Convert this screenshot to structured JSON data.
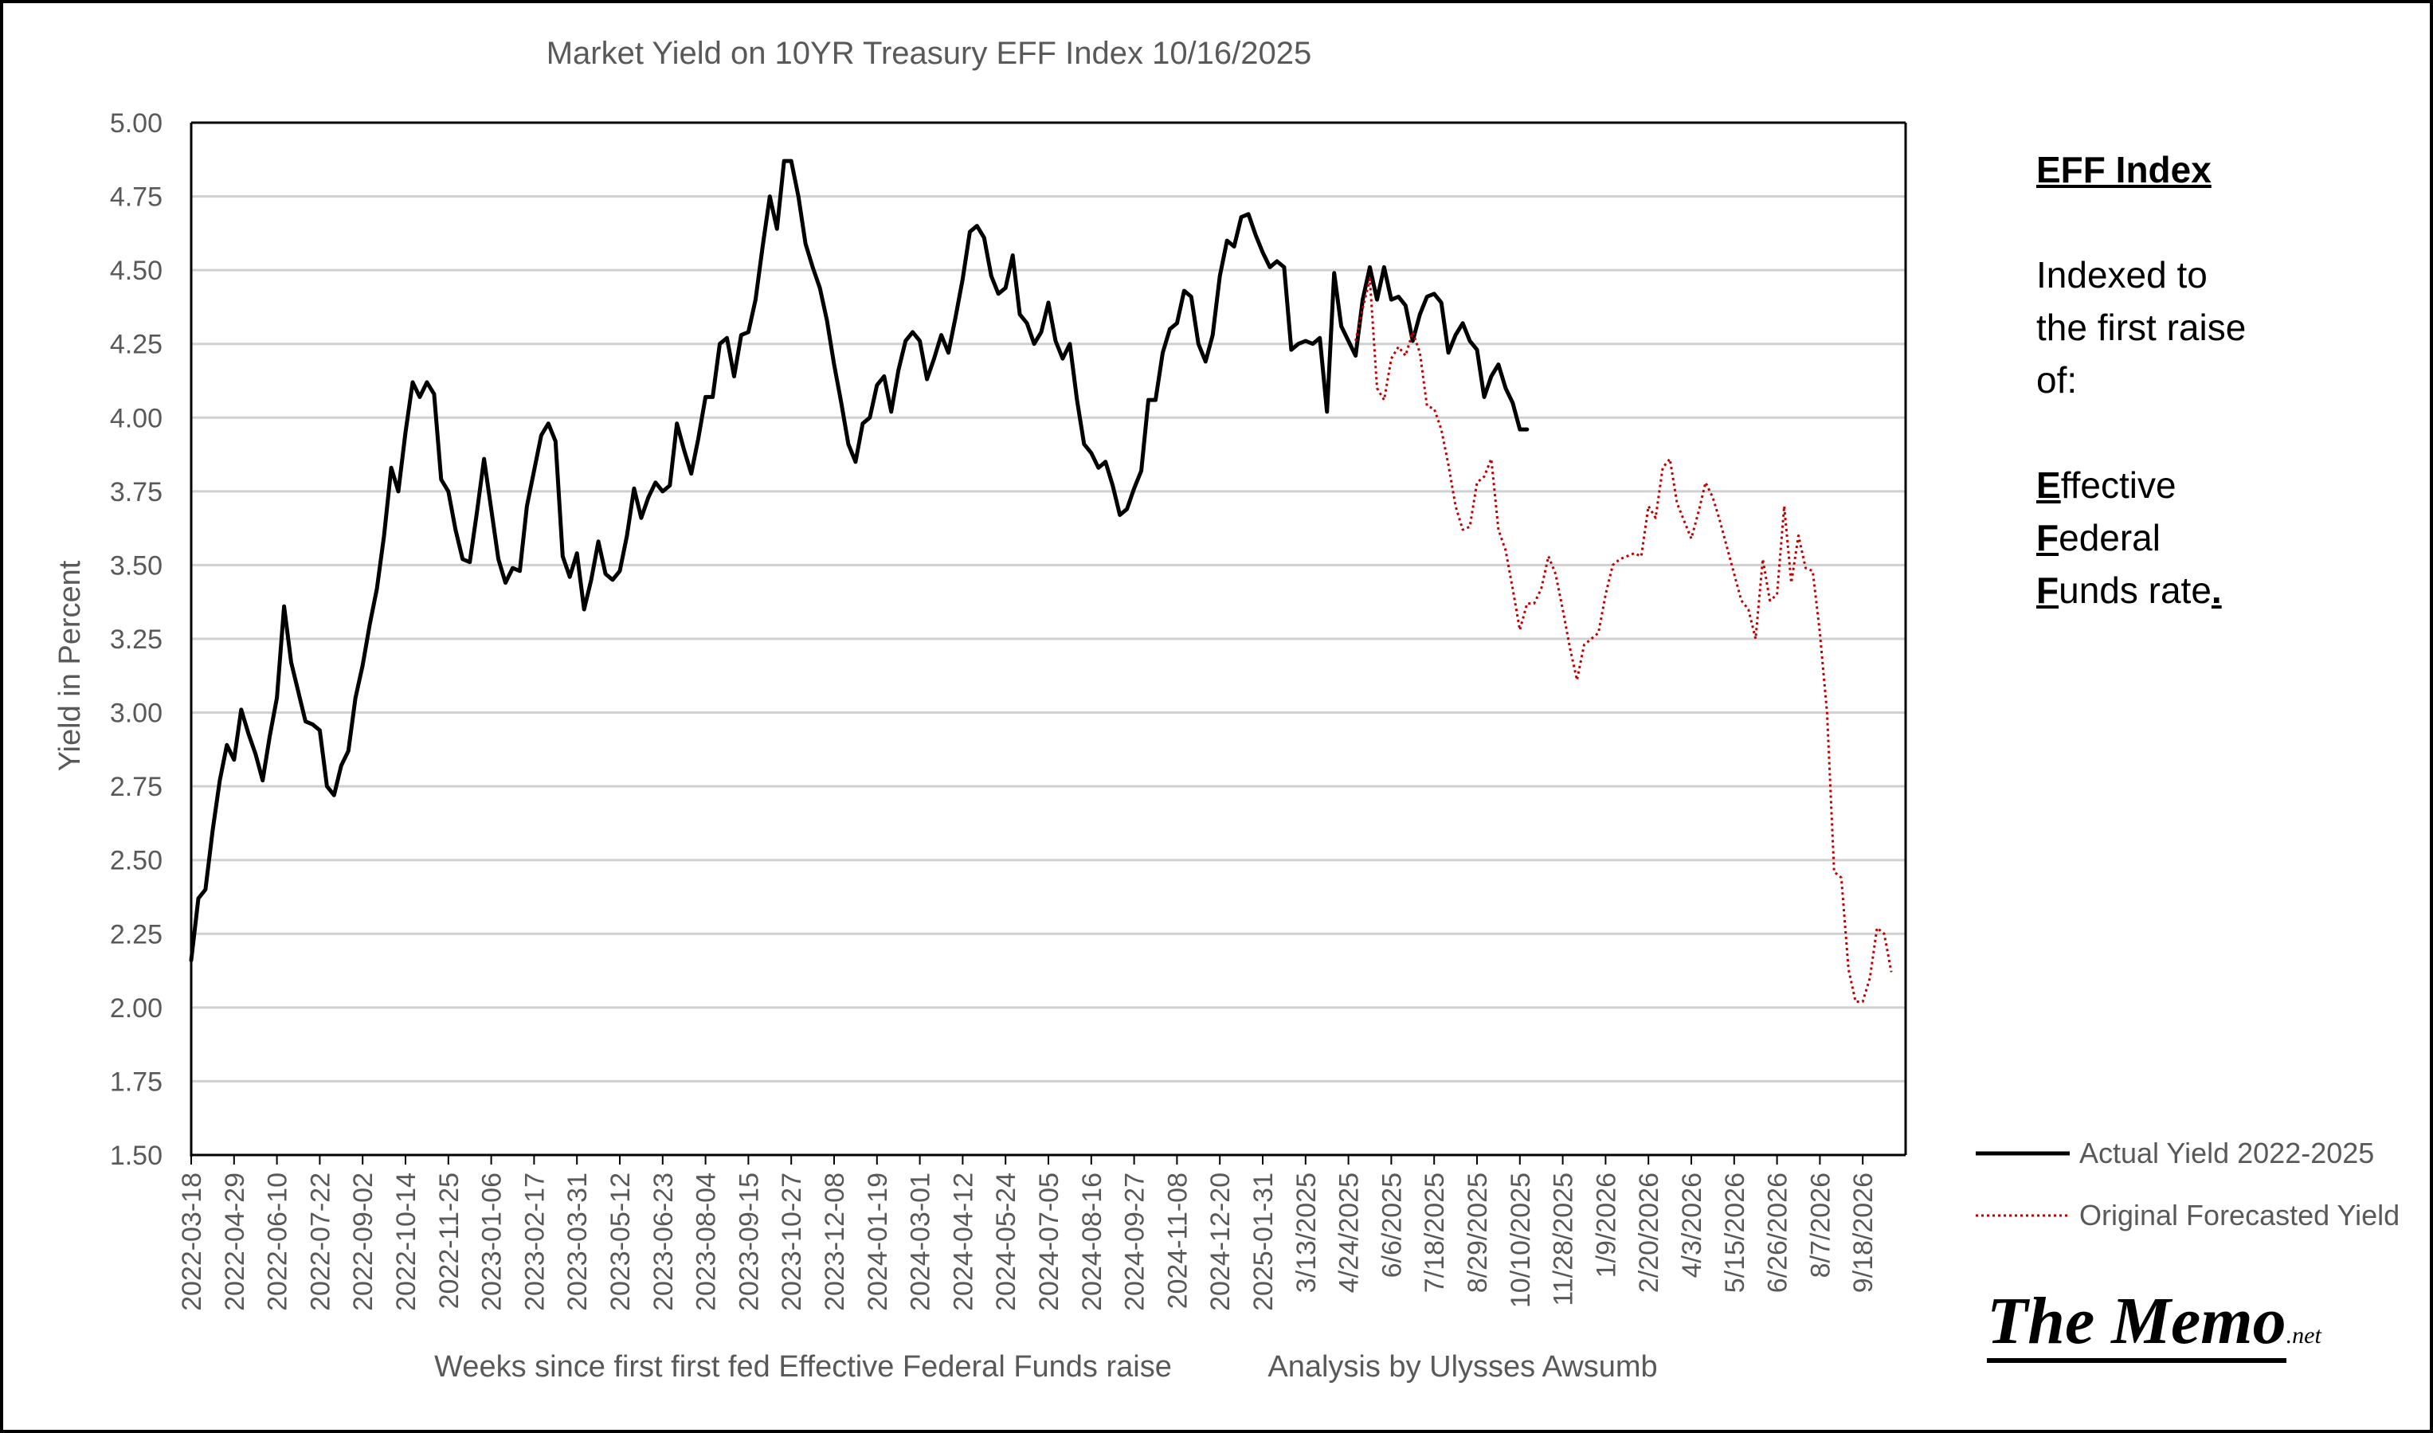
{
  "chart_data": {
    "type": "line",
    "title": "Market Yield on 10YR Treasury EFF Index 10/16/2025",
    "xlabel": "Weeks since first first fed Effective Federal Funds raise",
    "credit": "Analysis by Ulysses Awsumb",
    "ylabel": "Yield in Percent",
    "ylim": [
      1.5,
      5.0
    ],
    "y_ticks": [
      "5.00",
      "4.75",
      "4.50",
      "4.25",
      "4.00",
      "3.75",
      "3.50",
      "3.25",
      "3.00",
      "2.75",
      "2.50",
      "2.25",
      "2.00",
      "1.75",
      "1.50"
    ],
    "grid": "horizontal",
    "x_range": [
      0,
      240
    ],
    "x_ticks": [
      {
        "x": 0,
        "label": "2022-03-18"
      },
      {
        "x": 6,
        "label": "2022-04-29"
      },
      {
        "x": 12,
        "label": "2022-06-10"
      },
      {
        "x": 18,
        "label": "2022-07-22"
      },
      {
        "x": 24,
        "label": "2022-09-02"
      },
      {
        "x": 30,
        "label": "2022-10-14"
      },
      {
        "x": 36,
        "label": "2022-11-25"
      },
      {
        "x": 42,
        "label": "2023-01-06"
      },
      {
        "x": 48,
        "label": "2023-02-17"
      },
      {
        "x": 54,
        "label": "2023-03-31"
      },
      {
        "x": 60,
        "label": "2023-05-12"
      },
      {
        "x": 66,
        "label": "2023-06-23"
      },
      {
        "x": 72,
        "label": "2023-08-04"
      },
      {
        "x": 78,
        "label": "2023-09-15"
      },
      {
        "x": 84,
        "label": "2023-10-27"
      },
      {
        "x": 90,
        "label": "2023-12-08"
      },
      {
        "x": 96,
        "label": "2024-01-19"
      },
      {
        "x": 102,
        "label": "2024-03-01"
      },
      {
        "x": 108,
        "label": "2024-04-12"
      },
      {
        "x": 114,
        "label": "2024-05-24"
      },
      {
        "x": 120,
        "label": "2024-07-05"
      },
      {
        "x": 126,
        "label": "2024-08-16"
      },
      {
        "x": 132,
        "label": "2024-09-27"
      },
      {
        "x": 138,
        "label": "2024-11-08"
      },
      {
        "x": 144,
        "label": "2024-12-20"
      },
      {
        "x": 150,
        "label": "2025-01-31"
      },
      {
        "x": 156,
        "label": "3/13/2025"
      },
      {
        "x": 162,
        "label": "4/24/2025"
      },
      {
        "x": 168,
        "label": "6/6/2025"
      },
      {
        "x": 174,
        "label": "7/18/2025"
      },
      {
        "x": 180,
        "label": "8/29/2025"
      },
      {
        "x": 186,
        "label": "10/10/2025"
      },
      {
        "x": 192,
        "label": "11/28/2025"
      },
      {
        "x": 198,
        "label": "1/9/2026"
      },
      {
        "x": 204,
        "label": "2/20/2026"
      },
      {
        "x": 210,
        "label": "4/3/2026"
      },
      {
        "x": 216,
        "label": "5/15/2026"
      },
      {
        "x": 222,
        "label": "6/26/2026"
      },
      {
        "x": 228,
        "label": "8/7/2026"
      },
      {
        "x": 234,
        "label": "9/18/2026"
      }
    ],
    "series": [
      {
        "name": "Actual Yield 2022-2025",
        "color": "#000000",
        "style": "solid",
        "points": [
          [
            0,
            2.16
          ],
          [
            1,
            2.37
          ],
          [
            2,
            2.4
          ],
          [
            3,
            2.6
          ],
          [
            4,
            2.77
          ],
          [
            5,
            2.89
          ],
          [
            6,
            2.84
          ],
          [
            7,
            3.01
          ],
          [
            8,
            2.93
          ],
          [
            9,
            2.86
          ],
          [
            10,
            2.77
          ],
          [
            11,
            2.92
          ],
          [
            12,
            3.05
          ],
          [
            13,
            3.36
          ],
          [
            14,
            3.17
          ],
          [
            15,
            3.07
          ],
          [
            16,
            2.97
          ],
          [
            17,
            2.96
          ],
          [
            18,
            2.94
          ],
          [
            19,
            2.75
          ],
          [
            20,
            2.72
          ],
          [
            21,
            2.82
          ],
          [
            22,
            2.87
          ],
          [
            23,
            3.05
          ],
          [
            24,
            3.16
          ],
          [
            25,
            3.3
          ],
          [
            26,
            3.42
          ],
          [
            27,
            3.6
          ],
          [
            28,
            3.83
          ],
          [
            29,
            3.75
          ],
          [
            30,
            3.95
          ],
          [
            31,
            4.12
          ],
          [
            32,
            4.07
          ],
          [
            33,
            4.12
          ],
          [
            34,
            4.08
          ],
          [
            35,
            3.79
          ],
          [
            36,
            3.75
          ],
          [
            37,
            3.62
          ],
          [
            38,
            3.52
          ],
          [
            39,
            3.51
          ],
          [
            40,
            3.68
          ],
          [
            41,
            3.86
          ],
          [
            42,
            3.69
          ],
          [
            43,
            3.52
          ],
          [
            44,
            3.44
          ],
          [
            45,
            3.49
          ],
          [
            46,
            3.48
          ],
          [
            47,
            3.7
          ],
          [
            48,
            3.82
          ],
          [
            49,
            3.94
          ],
          [
            50,
            3.98
          ],
          [
            51,
            3.92
          ],
          [
            52,
            3.53
          ],
          [
            53,
            3.46
          ],
          [
            54,
            3.54
          ],
          [
            55,
            3.35
          ],
          [
            56,
            3.45
          ],
          [
            57,
            3.58
          ],
          [
            58,
            3.47
          ],
          [
            59,
            3.45
          ],
          [
            60,
            3.48
          ],
          [
            61,
            3.6
          ],
          [
            62,
            3.76
          ],
          [
            63,
            3.66
          ],
          [
            64,
            3.73
          ],
          [
            65,
            3.78
          ],
          [
            66,
            3.75
          ],
          [
            67,
            3.77
          ],
          [
            68,
            3.98
          ],
          [
            69,
            3.89
          ],
          [
            70,
            3.81
          ],
          [
            71,
            3.93
          ],
          [
            72,
            4.07
          ],
          [
            73,
            4.07
          ],
          [
            74,
            4.25
          ],
          [
            75,
            4.27
          ],
          [
            76,
            4.14
          ],
          [
            77,
            4.28
          ],
          [
            78,
            4.29
          ],
          [
            79,
            4.4
          ],
          [
            80,
            4.58
          ],
          [
            81,
            4.75
          ],
          [
            82,
            4.64
          ],
          [
            83,
            4.87
          ],
          [
            84,
            4.87
          ],
          [
            85,
            4.75
          ],
          [
            86,
            4.59
          ],
          [
            87,
            4.51
          ],
          [
            88,
            4.44
          ],
          [
            89,
            4.33
          ],
          [
            90,
            4.18
          ],
          [
            91,
            4.05
          ],
          [
            92,
            3.91
          ],
          [
            93,
            3.85
          ],
          [
            94,
            3.98
          ],
          [
            95,
            4.0
          ],
          [
            96,
            4.11
          ],
          [
            97,
            4.14
          ],
          [
            98,
            4.02
          ],
          [
            99,
            4.16
          ],
          [
            100,
            4.26
          ],
          [
            101,
            4.29
          ],
          [
            102,
            4.26
          ],
          [
            103,
            4.13
          ],
          [
            104,
            4.2
          ],
          [
            105,
            4.28
          ],
          [
            106,
            4.22
          ],
          [
            107,
            4.34
          ],
          [
            108,
            4.47
          ],
          [
            109,
            4.63
          ],
          [
            110,
            4.65
          ],
          [
            111,
            4.61
          ],
          [
            112,
            4.48
          ],
          [
            113,
            4.42
          ],
          [
            114,
            4.44
          ],
          [
            115,
            4.55
          ],
          [
            116,
            4.35
          ],
          [
            117,
            4.32
          ],
          [
            118,
            4.25
          ],
          [
            119,
            4.29
          ],
          [
            120,
            4.39
          ],
          [
            121,
            4.26
          ],
          [
            122,
            4.2
          ],
          [
            123,
            4.25
          ],
          [
            124,
            4.06
          ],
          [
            125,
            3.91
          ],
          [
            126,
            3.88
          ],
          [
            127,
            3.83
          ],
          [
            128,
            3.85
          ],
          [
            129,
            3.77
          ],
          [
            130,
            3.67
          ],
          [
            131,
            3.69
          ],
          [
            132,
            3.76
          ],
          [
            133,
            3.82
          ],
          [
            134,
            4.06
          ],
          [
            135,
            4.06
          ],
          [
            136,
            4.22
          ],
          [
            137,
            4.3
          ],
          [
            138,
            4.32
          ],
          [
            139,
            4.43
          ],
          [
            140,
            4.41
          ],
          [
            141,
            4.25
          ],
          [
            142,
            4.19
          ],
          [
            143,
            4.28
          ],
          [
            144,
            4.48
          ],
          [
            145,
            4.6
          ],
          [
            146,
            4.58
          ],
          [
            147,
            4.68
          ],
          [
            148,
            4.69
          ],
          [
            149,
            4.62
          ],
          [
            150,
            4.56
          ],
          [
            151,
            4.51
          ],
          [
            152,
            4.53
          ],
          [
            153,
            4.51
          ],
          [
            154,
            4.23
          ],
          [
            155,
            4.25
          ],
          [
            156,
            4.26
          ],
          [
            157,
            4.25
          ],
          [
            158,
            4.27
          ],
          [
            159,
            4.02
          ],
          [
            160,
            4.49
          ],
          [
            161,
            4.31
          ],
          [
            162,
            4.26
          ],
          [
            163,
            4.21
          ],
          [
            164,
            4.4
          ],
          [
            165,
            4.51
          ],
          [
            166,
            4.4
          ],
          [
            167,
            4.51
          ],
          [
            168,
            4.4
          ],
          [
            169,
            4.41
          ],
          [
            170,
            4.38
          ],
          [
            171,
            4.26
          ],
          [
            172,
            4.35
          ],
          [
            173,
            4.41
          ],
          [
            174,
            4.42
          ],
          [
            175,
            4.39
          ],
          [
            176,
            4.22
          ],
          [
            177,
            4.28
          ],
          [
            178,
            4.32
          ],
          [
            179,
            4.26
          ],
          [
            180,
            4.23
          ],
          [
            181,
            4.07
          ],
          [
            182,
            4.14
          ],
          [
            183,
            4.18
          ],
          [
            184,
            4.1
          ],
          [
            185,
            4.05
          ],
          [
            186,
            3.96
          ],
          [
            187,
            3.96
          ]
        ]
      },
      {
        "name": "Original Forecasted Yield",
        "color": "#c00000",
        "style": "dotted",
        "points": [
          [
            163,
            4.26
          ],
          [
            164,
            4.37
          ],
          [
            165,
            4.47
          ],
          [
            166,
            4.1
          ],
          [
            167,
            4.06
          ],
          [
            168,
            4.2
          ],
          [
            169,
            4.24
          ],
          [
            170,
            4.21
          ],
          [
            171,
            4.29
          ],
          [
            172,
            4.22
          ],
          [
            173,
            4.04
          ],
          [
            174,
            4.03
          ],
          [
            175,
            3.96
          ],
          [
            176,
            3.84
          ],
          [
            177,
            3.7
          ],
          [
            178,
            3.62
          ],
          [
            179,
            3.63
          ],
          [
            180,
            3.78
          ],
          [
            181,
            3.8
          ],
          [
            182,
            3.86
          ],
          [
            183,
            3.62
          ],
          [
            184,
            3.55
          ],
          [
            185,
            3.42
          ],
          [
            186,
            3.28
          ],
          [
            187,
            3.37
          ],
          [
            188,
            3.37
          ],
          [
            189,
            3.42
          ],
          [
            190,
            3.53
          ],
          [
            191,
            3.47
          ],
          [
            192,
            3.35
          ],
          [
            193,
            3.22
          ],
          [
            194,
            3.11
          ],
          [
            195,
            3.23
          ],
          [
            196,
            3.25
          ],
          [
            197,
            3.27
          ],
          [
            198,
            3.4
          ],
          [
            199,
            3.5
          ],
          [
            200,
            3.52
          ],
          [
            201,
            3.53
          ],
          [
            202,
            3.54
          ],
          [
            203,
            3.53
          ],
          [
            204,
            3.7
          ],
          [
            205,
            3.66
          ],
          [
            206,
            3.83
          ],
          [
            207,
            3.86
          ],
          [
            208,
            3.71
          ],
          [
            209,
            3.65
          ],
          [
            210,
            3.59
          ],
          [
            211,
            3.68
          ],
          [
            212,
            3.78
          ],
          [
            213,
            3.73
          ],
          [
            214,
            3.65
          ],
          [
            215,
            3.56
          ],
          [
            216,
            3.47
          ],
          [
            217,
            3.38
          ],
          [
            218,
            3.35
          ],
          [
            219,
            3.25
          ],
          [
            220,
            3.52
          ],
          [
            221,
            3.38
          ],
          [
            222,
            3.4
          ],
          [
            223,
            3.7
          ],
          [
            224,
            3.44
          ],
          [
            225,
            3.6
          ],
          [
            226,
            3.49
          ],
          [
            227,
            3.48
          ],
          [
            228,
            3.27
          ],
          [
            229,
            3.0
          ],
          [
            230,
            2.46
          ],
          [
            231,
            2.44
          ],
          [
            232,
            2.13
          ],
          [
            233,
            2.02
          ],
          [
            234,
            2.02
          ],
          [
            235,
            2.1
          ],
          [
            236,
            2.27
          ],
          [
            237,
            2.25
          ],
          [
            238,
            2.12
          ]
        ]
      }
    ],
    "legend_position": "bottom-right"
  },
  "side_note": {
    "heading": "EFF Index",
    "line1": "Indexed to",
    "line2": "the first raise",
    "line3": "of:",
    "e_initial": "E",
    "e_rest": "ffective",
    "f1_initial": "F",
    "f1_rest": "ederal",
    "f2_initial": "F",
    "f2_rest": "unds rate",
    "f2_tail": "."
  },
  "brand": {
    "name": "The Memo",
    "suffix": ".net"
  }
}
